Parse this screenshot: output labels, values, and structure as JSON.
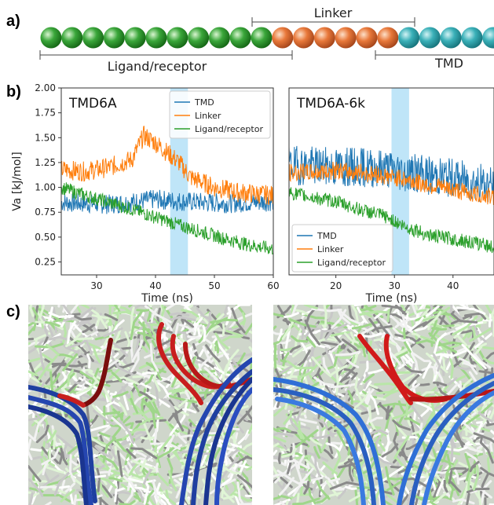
{
  "panels": {
    "a": "a)",
    "b": "b)",
    "c": "c)"
  },
  "schematic": {
    "bead_counts": {
      "ligand_receptor": 11,
      "linker": 6,
      "tmd": 6
    },
    "colors": {
      "ligand_receptor": "#3aa63a",
      "linker": "#e8783a",
      "tmd": "#3ab0b8"
    },
    "labels": {
      "linker": "Linker",
      "ligand_receptor": "Ligand/receptor",
      "tmd": "TMD"
    }
  },
  "chart_data": [
    {
      "type": "line",
      "title": "TMD6A",
      "xlabel": "Time (ns)",
      "ylabel": "Va [kJ/mol]",
      "xlim": [
        24,
        60
      ],
      "ylim": [
        0.12,
        2.0
      ],
      "xticks": [
        30,
        40,
        50,
        60
      ],
      "yticks": [
        "0.25",
        "0.50",
        "0.75",
        "1.00",
        "1.25",
        "1.50",
        "1.75",
        "2.00"
      ],
      "highlight": [
        42.5,
        45.5
      ],
      "legend_position": "top-right",
      "series": [
        {
          "name": "TMD",
          "color": "#1f77b4",
          "x": [
            24,
            28,
            32,
            36,
            40,
            44,
            48,
            52,
            56,
            60
          ],
          "values": [
            0.85,
            0.84,
            0.83,
            0.85,
            0.88,
            0.86,
            0.85,
            0.84,
            0.85,
            0.86
          ]
        },
        {
          "name": "Linker",
          "color": "#ff7f0e",
          "x": [
            24,
            28,
            32,
            36,
            38,
            40,
            42,
            44,
            46,
            50,
            54,
            60
          ],
          "values": [
            1.18,
            1.16,
            1.2,
            1.28,
            1.52,
            1.45,
            1.35,
            1.25,
            1.1,
            1.0,
            0.95,
            0.92
          ]
        },
        {
          "name": "Ligand/receptor",
          "color": "#2ca02c",
          "x": [
            24,
            28,
            32,
            36,
            40,
            44,
            48,
            52,
            56,
            60
          ],
          "values": [
            1.0,
            0.92,
            0.85,
            0.78,
            0.7,
            0.62,
            0.55,
            0.48,
            0.42,
            0.38
          ]
        }
      ]
    },
    {
      "type": "line",
      "title": "TMD6A-6k",
      "xlabel": "Time (ns)",
      "ylabel": "",
      "xlim": [
        12,
        47
      ],
      "ylim": [
        0.12,
        2.0
      ],
      "xticks": [
        20,
        30,
        40
      ],
      "yticks": [],
      "highlight": [
        29.5,
        32.5
      ],
      "legend_position": "bottom-left",
      "series": [
        {
          "name": "TMD",
          "color": "#1f77b4",
          "x": [
            12,
            16,
            20,
            24,
            28,
            32,
            36,
            40,
            44,
            47
          ],
          "values": [
            1.22,
            1.22,
            1.2,
            1.2,
            1.2,
            1.15,
            1.12,
            1.1,
            1.05,
            1.02
          ]
        },
        {
          "name": "Linker",
          "color": "#ff7f0e",
          "x": [
            12,
            16,
            20,
            24,
            28,
            32,
            36,
            40,
            44,
            47
          ],
          "values": [
            1.15,
            1.15,
            1.17,
            1.15,
            1.12,
            1.08,
            1.02,
            0.98,
            0.93,
            0.9
          ]
        },
        {
          "name": "Ligand/receptor",
          "color": "#2ca02c",
          "x": [
            12,
            16,
            20,
            24,
            28,
            32,
            36,
            40,
            44,
            47
          ],
          "values": [
            0.95,
            0.9,
            0.86,
            0.78,
            0.72,
            0.6,
            0.52,
            0.48,
            0.44,
            0.4
          ]
        }
      ]
    }
  ],
  "images": {
    "left_description_colors": {
      "blue": "#1f3fa0",
      "red": "#c81e1e",
      "dark_red": "#7a0e0e"
    },
    "right_description_colors": {
      "blue": "#2f6fd6",
      "red": "#d11a1a"
    }
  }
}
